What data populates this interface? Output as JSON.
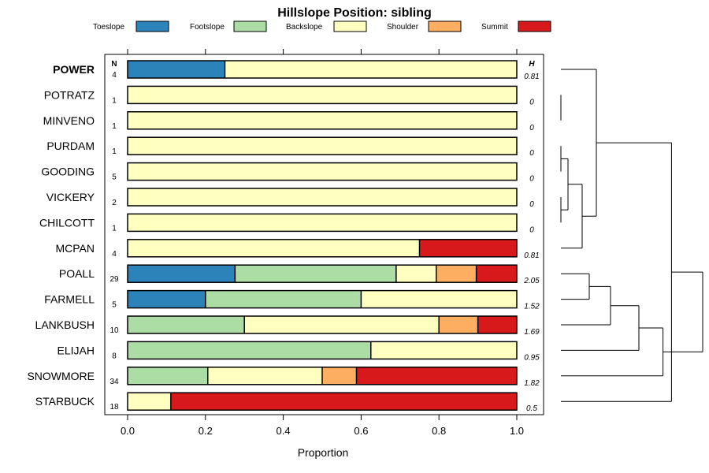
{
  "chart_data": {
    "type": "bar",
    "stacked": true,
    "orientation": "horizontal",
    "title": "Hillslope Position: sibling",
    "xlabel": "Proportion",
    "xlim": [
      0,
      1
    ],
    "xticks": [
      "0.0",
      "0.2",
      "0.4",
      "0.6",
      "0.8",
      "1.0"
    ],
    "tick_values": [
      0,
      0.2,
      0.4,
      0.6,
      0.8,
      1.0
    ],
    "n_header": "N",
    "h_header": "H",
    "legend": [
      {
        "name": "Toeslope",
        "color": "#2b83ba"
      },
      {
        "name": "Footslope",
        "color": "#abdda4"
      },
      {
        "name": "Backslope",
        "color": "#ffffbf"
      },
      {
        "name": "Shoulder",
        "color": "#fdae61"
      },
      {
        "name": "Summit",
        "color": "#d7191c"
      }
    ],
    "categories": [
      "POWER",
      "POTRATZ",
      "MINVENO",
      "PURDAM",
      "GOODING",
      "VICKERY",
      "CHILCOTT",
      "MCPAN",
      "POALL",
      "FARMELL",
      "LANKBUSH",
      "ELIJAH",
      "SNOWMORE",
      "STARBUCK"
    ],
    "highlight": "POWER",
    "n": [
      "4",
      "1",
      "1",
      "1",
      "5",
      "2",
      "1",
      "4",
      "29",
      "5",
      "10",
      "8",
      "34",
      "18"
    ],
    "h": [
      "0.81",
      "0",
      "0",
      "0",
      "0",
      "0",
      "0",
      "0.81",
      "2.05",
      "1.52",
      "1.69",
      "0.95",
      "1.82",
      "0.5"
    ],
    "series": [
      {
        "name": "Toeslope",
        "values": [
          0.25,
          0,
          0,
          0,
          0,
          0,
          0,
          0,
          0.276,
          0.2,
          0,
          0,
          0,
          0
        ]
      },
      {
        "name": "Footslope",
        "values": [
          0,
          0,
          0,
          0,
          0,
          0,
          0,
          0,
          0.414,
          0.4,
          0.3,
          0.625,
          0.206,
          0
        ]
      },
      {
        "name": "Backslope",
        "values": [
          0.75,
          1,
          1,
          1,
          1,
          1,
          1,
          0.75,
          0.103,
          0.4,
          0.5,
          0.375,
          0.294,
          0.111
        ]
      },
      {
        "name": "Shoulder",
        "values": [
          0,
          0,
          0,
          0,
          0,
          0,
          0,
          0,
          0.103,
          0,
          0.1,
          0,
          0.088,
          0
        ]
      },
      {
        "name": "Summit",
        "values": [
          0,
          0,
          0,
          0,
          0,
          0,
          0,
          0.25,
          0.104,
          0,
          0.1,
          0,
          0.412,
          0.889
        ]
      }
    ],
    "dendrogram": {
      "leaves": [
        "POWER",
        "POTRATZ",
        "MINVENO",
        "PURDAM",
        "GOODING",
        "VICKERY",
        "CHILCOTT",
        "MCPAN",
        "POALL",
        "FARMELL",
        "LANKBUSH",
        "ELIJAH",
        "SNOWMORE",
        "STARBUCK"
      ],
      "merges": [
        {
          "a": 1,
          "b": 2,
          "h": 0.0
        },
        {
          "a": 3,
          "b": 4,
          "h": 0.0
        },
        {
          "a": 5,
          "b": 6,
          "h": 0.0
        },
        {
          "a": -2,
          "b": -3,
          "h": 0.05
        },
        {
          "a": -4,
          "b": 7,
          "h": 0.15
        },
        {
          "a": 0,
          "b": -5,
          "h": 0.25
        },
        {
          "a": 8,
          "b": 9,
          "h": 0.2
        },
        {
          "a": -7,
          "b": 10,
          "h": 0.35
        },
        {
          "a": -8,
          "b": 11,
          "h": 0.55
        },
        {
          "a": -9,
          "b": 12,
          "h": 0.72
        },
        {
          "a": -6,
          "b": 13,
          "h": 0.78
        },
        {
          "a": -10,
          "b": -11,
          "h": 1.0
        }
      ]
    }
  }
}
